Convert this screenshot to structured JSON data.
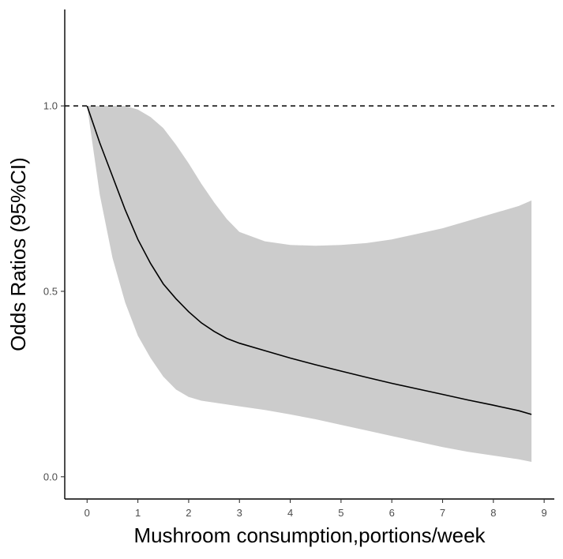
{
  "chart_data": {
    "type": "line",
    "title": "",
    "xlabel": "Mushroom consumption,portions/week",
    "ylabel": "Odds Ratios (95%CI)",
    "xlim": [
      -0.44,
      9.2
    ],
    "ylim": [
      -0.06,
      1.26
    ],
    "x_ticks": [
      0,
      1,
      2,
      3,
      4,
      5,
      6,
      7,
      8,
      9
    ],
    "x_tick_labels": [
      "0",
      "1",
      "2",
      "3",
      "4",
      "5",
      "6",
      "7",
      "8",
      "9"
    ],
    "y_ticks": [
      0.0,
      0.5,
      1.0
    ],
    "y_tick_labels": [
      "0.0",
      "0.5",
      "1.0"
    ],
    "reference_line": {
      "y": 1.0,
      "style": "dashed"
    },
    "grid": false,
    "legend": "none",
    "colors": {
      "line": "#000000",
      "band": "#cccccc",
      "axis": "#000000",
      "tick_text": "#4d4d4d"
    },
    "series": [
      {
        "x": [
          0,
          0.25,
          0.5,
          0.75,
          1,
          1.25,
          1.5,
          1.75,
          2,
          2.25,
          2.5,
          2.75,
          3,
          3.5,
          4,
          4.5,
          5,
          5.5,
          6,
          6.5,
          7,
          7.5,
          8,
          8.5,
          8.75
        ],
        "y": [
          1.0,
          0.9,
          0.81,
          0.72,
          0.64,
          0.575,
          0.52,
          0.48,
          0.445,
          0.415,
          0.392,
          0.373,
          0.36,
          0.34,
          0.32,
          0.302,
          0.285,
          0.268,
          0.252,
          0.237,
          0.222,
          0.207,
          0.193,
          0.178,
          0.168
        ],
        "lower": [
          1.0,
          0.76,
          0.59,
          0.47,
          0.38,
          0.32,
          0.27,
          0.235,
          0.215,
          0.205,
          0.2,
          0.195,
          0.19,
          0.18,
          0.168,
          0.155,
          0.14,
          0.125,
          0.11,
          0.095,
          0.08,
          0.067,
          0.057,
          0.047,
          0.04
        ],
        "upper": [
          1.0,
          1.0,
          1.0,
          1.0,
          0.99,
          0.97,
          0.94,
          0.895,
          0.845,
          0.79,
          0.74,
          0.695,
          0.66,
          0.635,
          0.625,
          0.623,
          0.625,
          0.63,
          0.64,
          0.655,
          0.67,
          0.69,
          0.71,
          0.73,
          0.745
        ]
      }
    ]
  }
}
